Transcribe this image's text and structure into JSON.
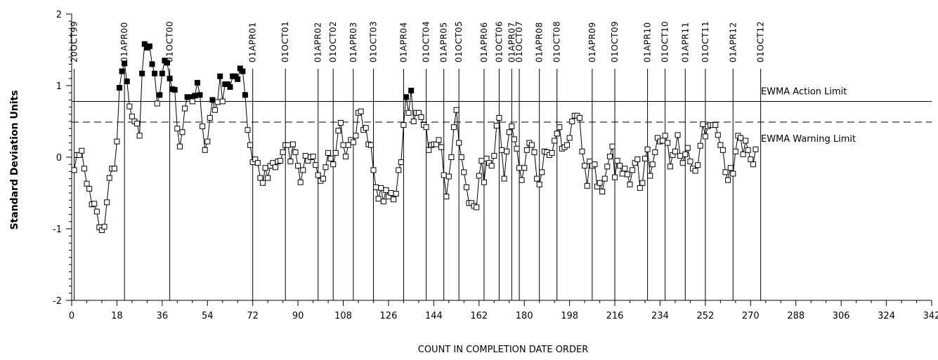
{
  "chart_data": {
    "type": "line",
    "chart_subtype": "EWMA control chart",
    "title": "",
    "xlabel": "COUNT IN COMPLETION DATE ORDER",
    "ylabel": "Standard Deviation Units",
    "xlim": [
      0,
      342
    ],
    "ylim": [
      -2,
      2
    ],
    "x_ticks": [
      0,
      18,
      36,
      54,
      72,
      90,
      108,
      126,
      144,
      162,
      180,
      198,
      216,
      234,
      252,
      270,
      288,
      306,
      324,
      342
    ],
    "y_ticks": [
      -2,
      -1,
      0,
      1,
      2
    ],
    "grid": false,
    "limits": [
      {
        "name": "EWMA Action Limit",
        "value": 0.78,
        "style": "solid"
      },
      {
        "name": "EWMA Warning Limit",
        "value": 0.49,
        "style": "dashed"
      }
    ],
    "date_markers": [
      {
        "label": "20OCT99",
        "x": 1
      },
      {
        "label": "01APR00",
        "x": 21
      },
      {
        "label": "01OCT00",
        "x": 39
      },
      {
        "label": "01APR01",
        "x": 72
      },
      {
        "label": "01OCT01",
        "x": 85
      },
      {
        "label": "01APR02",
        "x": 98
      },
      {
        "label": "01OCT02",
        "x": 104
      },
      {
        "label": "01APR03",
        "x": 112
      },
      {
        "label": "01OCT03",
        "x": 120
      },
      {
        "label": "01APR04",
        "x": 132
      },
      {
        "label": "01OCT04",
        "x": 141
      },
      {
        "label": "01APR05",
        "x": 148
      },
      {
        "label": "01OCT05",
        "x": 154
      },
      {
        "label": "01APR06",
        "x": 164
      },
      {
        "label": "01OCT06",
        "x": 170
      },
      {
        "label": "01APR07",
        "x": 175
      },
      {
        "label": "01OCT07",
        "x": 178
      },
      {
        "label": "01APR08",
        "x": 186
      },
      {
        "label": "01OCT08",
        "x": 193
      },
      {
        "label": "01APR09",
        "x": 207
      },
      {
        "label": "01OCT09",
        "x": 216
      },
      {
        "label": "01APR10",
        "x": 229
      },
      {
        "label": "01OCT10",
        "x": 236
      },
      {
        "label": "01APR11",
        "x": 244
      },
      {
        "label": "01OCT11",
        "x": 252
      },
      {
        "label": "01APR12",
        "x": 263
      },
      {
        "label": "01OCT12",
        "x": 274
      }
    ],
    "series": [
      {
        "filled_marker_rule": "value above EWMA Action Limit",
        "values": [
          -0.18,
          0.03,
          0.03,
          0.09,
          -0.16,
          -0.37,
          -0.44,
          -0.66,
          -0.65,
          -0.76,
          -0.98,
          -1.02,
          -0.97,
          -0.63,
          -0.29,
          -0.16,
          -0.16,
          0.22,
          0.97,
          1.2,
          1.31,
          1.06,
          0.71,
          0.57,
          0.5,
          0.47,
          0.3,
          1.17,
          1.58,
          1.53,
          1.55,
          1.3,
          1.17,
          0.75,
          0.87,
          1.17,
          1.35,
          1.32,
          1.1,
          0.95,
          0.94,
          0.4,
          0.15,
          0.35,
          0.68,
          0.84,
          0.84,
          0.78,
          0.86,
          1.04,
          0.87,
          0.43,
          0.1,
          0.22,
          0.55,
          0.8,
          0.66,
          0.77,
          1.13,
          0.78,
          1.02,
          1.02,
          0.98,
          1.13,
          1.13,
          1.09,
          1.24,
          1.2,
          0.87,
          0.38,
          0.17,
          -0.07,
          -0.03,
          -0.08,
          -0.29,
          -0.36,
          -0.15,
          -0.29,
          -0.12,
          -0.08,
          -0.14,
          -0.06,
          -0.05,
          0.07,
          0.17,
          0.17,
          -0.06,
          0.18,
          0.07,
          -0.12,
          -0.35,
          -0.18,
          0.02,
          -0.05,
          0.0,
          0.01,
          -0.11,
          -0.25,
          -0.33,
          -0.3,
          -0.14,
          0.06,
          -0.02,
          -0.1,
          0.06,
          0.37,
          0.48,
          0.17,
          0.01,
          0.17,
          0.24,
          0.21,
          0.3,
          0.62,
          0.64,
          0.38,
          0.41,
          0.18,
          0.17,
          -0.18,
          -0.42,
          -0.58,
          -0.43,
          -0.62,
          -0.46,
          -0.55,
          -0.5,
          -0.59,
          -0.51,
          -0.18,
          -0.07,
          0.45,
          0.84,
          0.62,
          0.93,
          0.5,
          0.62,
          0.62,
          0.56,
          0.45,
          0.42,
          0.1,
          0.17,
          0.18,
          0.18,
          0.24,
          0.14,
          -0.25,
          -0.55,
          -0.27,
          0.0,
          0.42,
          0.66,
          0.2,
          0.0,
          -0.21,
          -0.42,
          -0.64,
          -0.64,
          -0.68,
          -0.7,
          -0.26,
          -0.05,
          -0.35,
          -0.02,
          -0.08,
          -0.12,
          0.02,
          0.44,
          0.55,
          0.1,
          -0.3,
          0.08,
          0.35,
          0.43,
          0.25,
          0.12,
          -0.15,
          -0.32,
          -0.15,
          0.1,
          0.2,
          0.17,
          0.07,
          -0.3,
          -0.38,
          -0.21,
          0.08,
          0.07,
          0.03,
          0.06,
          0.23,
          0.33,
          0.42,
          0.12,
          0.14,
          0.17,
          0.27,
          0.5,
          0.58,
          0.58,
          0.55,
          0.08,
          -0.12,
          -0.4,
          -0.06,
          -0.12,
          -0.1,
          -0.41,
          -0.36,
          -0.48,
          -0.3,
          -0.13,
          0.01,
          0.15,
          -0.28,
          -0.05,
          -0.12,
          -0.23,
          -0.16,
          -0.24,
          -0.38,
          -0.18,
          -0.08,
          -0.03,
          -0.43,
          -0.36,
          -0.02,
          0.11,
          -0.26,
          -0.1,
          0.07,
          0.27,
          0.22,
          0.23,
          0.3,
          0.2,
          -0.13,
          0.03,
          0.08,
          0.31,
          0.02,
          -0.08,
          0.04,
          0.13,
          -0.06,
          -0.16,
          -0.19,
          -0.11,
          0.16,
          0.46,
          0.29,
          0.43,
          0.45,
          0.45,
          0.45,
          0.31,
          0.17,
          0.1,
          -0.21,
          -0.32,
          -0.15,
          -0.23,
          0.08,
          0.3,
          0.27,
          0.04,
          0.23,
          0.1,
          -0.03,
          -0.1,
          0.11
        ]
      }
    ]
  }
}
